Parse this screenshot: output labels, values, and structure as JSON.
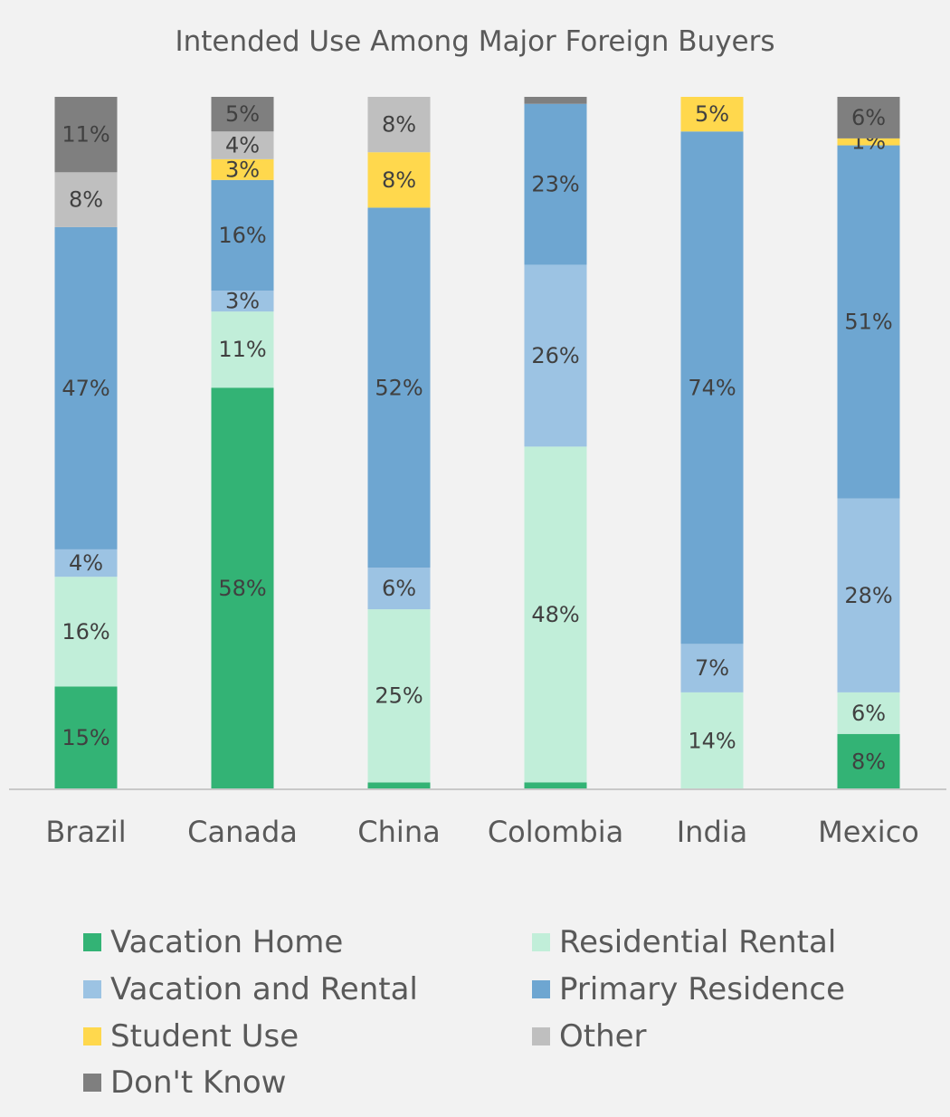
{
  "chart_data": {
    "type": "bar",
    "stacked": true,
    "title": "Intended Use Among Major Foreign Buyers",
    "xlabel": "",
    "ylabel": "",
    "ylim": [
      0,
      100
    ],
    "grid": false,
    "legend_position": "bottom",
    "categories": [
      "Brazil",
      "Canada",
      "China",
      "Colombia",
      "India",
      "Mexico"
    ],
    "series": [
      {
        "name": "Vacation Home",
        "color": "#33b375",
        "values": [
          15,
          58,
          1,
          1,
          0,
          8
        ]
      },
      {
        "name": "Residential Rental",
        "color": "#c1eed9",
        "values": [
          16,
          11,
          25,
          48,
          14,
          6
        ]
      },
      {
        "name": "Vacation and Rental",
        "color": "#9cc3e3",
        "values": [
          4,
          3,
          6,
          26,
          7,
          28
        ]
      },
      {
        "name": "Primary Residence",
        "color": "#6ea6d1",
        "values": [
          47,
          16,
          52,
          23,
          74,
          51
        ]
      },
      {
        "name": "Student Use",
        "color": "#ffd84d",
        "values": [
          0,
          3,
          8,
          0,
          5,
          1
        ]
      },
      {
        "name": "Other",
        "color": "#bfbfbf",
        "values": [
          8,
          4,
          8,
          0,
          0,
          0
        ]
      },
      {
        "name": "Don't Know",
        "color": "#7f7f7f",
        "values": [
          11,
          5,
          0,
          1,
          0,
          6
        ]
      }
    ],
    "data_labels": [
      [
        "15%",
        "58%",
        "",
        "",
        "",
        "8%"
      ],
      [
        "16%",
        "11%",
        "25%",
        "48%",
        "14%",
        "6%"
      ],
      [
        "4%",
        "3%",
        "6%",
        "26%",
        "7%",
        "28%"
      ],
      [
        "47%",
        "16%",
        "52%",
        "23%",
        "74%",
        "51%"
      ],
      [
        "",
        "3%",
        "8%",
        "",
        "5%",
        "1%"
      ],
      [
        "8%",
        "4%",
        "8%",
        "",
        "",
        ""
      ],
      [
        "11%",
        "5%",
        "",
        "",
        "",
        "6%"
      ]
    ]
  }
}
